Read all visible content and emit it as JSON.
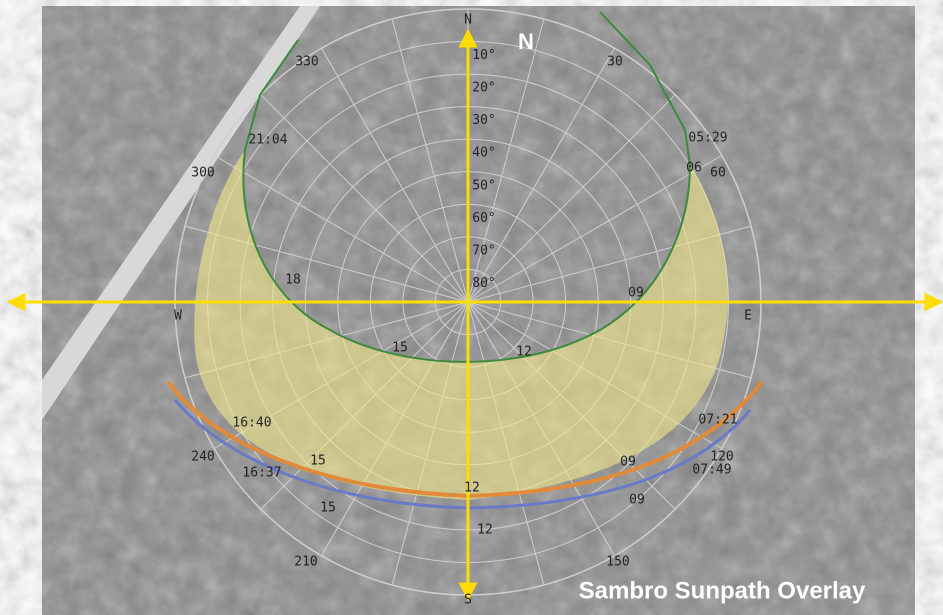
{
  "title": "Sambro Sunpath Overlay",
  "compass": {
    "north_big": "N",
    "north": "N",
    "west": "W",
    "east": "E",
    "south": "S"
  },
  "azimuth_labels": [
    "30",
    "60",
    "120",
    "150",
    "210",
    "240",
    "300",
    "330"
  ],
  "altitude_labels": [
    "10°",
    "20°",
    "30°",
    "40°",
    "50°",
    "60°",
    "70°",
    "80°"
  ],
  "summer_path": {
    "labels": [
      "05:29",
      "06",
      "09",
      "12",
      "15",
      "18",
      "21:04"
    ]
  },
  "winter_path_a": {
    "labels": [
      "07:21",
      "09",
      "12",
      "15",
      "16:40"
    ]
  },
  "winter_path_b": {
    "labels": [
      "07:49",
      "09",
      "12",
      "15",
      "16:37"
    ]
  }
}
